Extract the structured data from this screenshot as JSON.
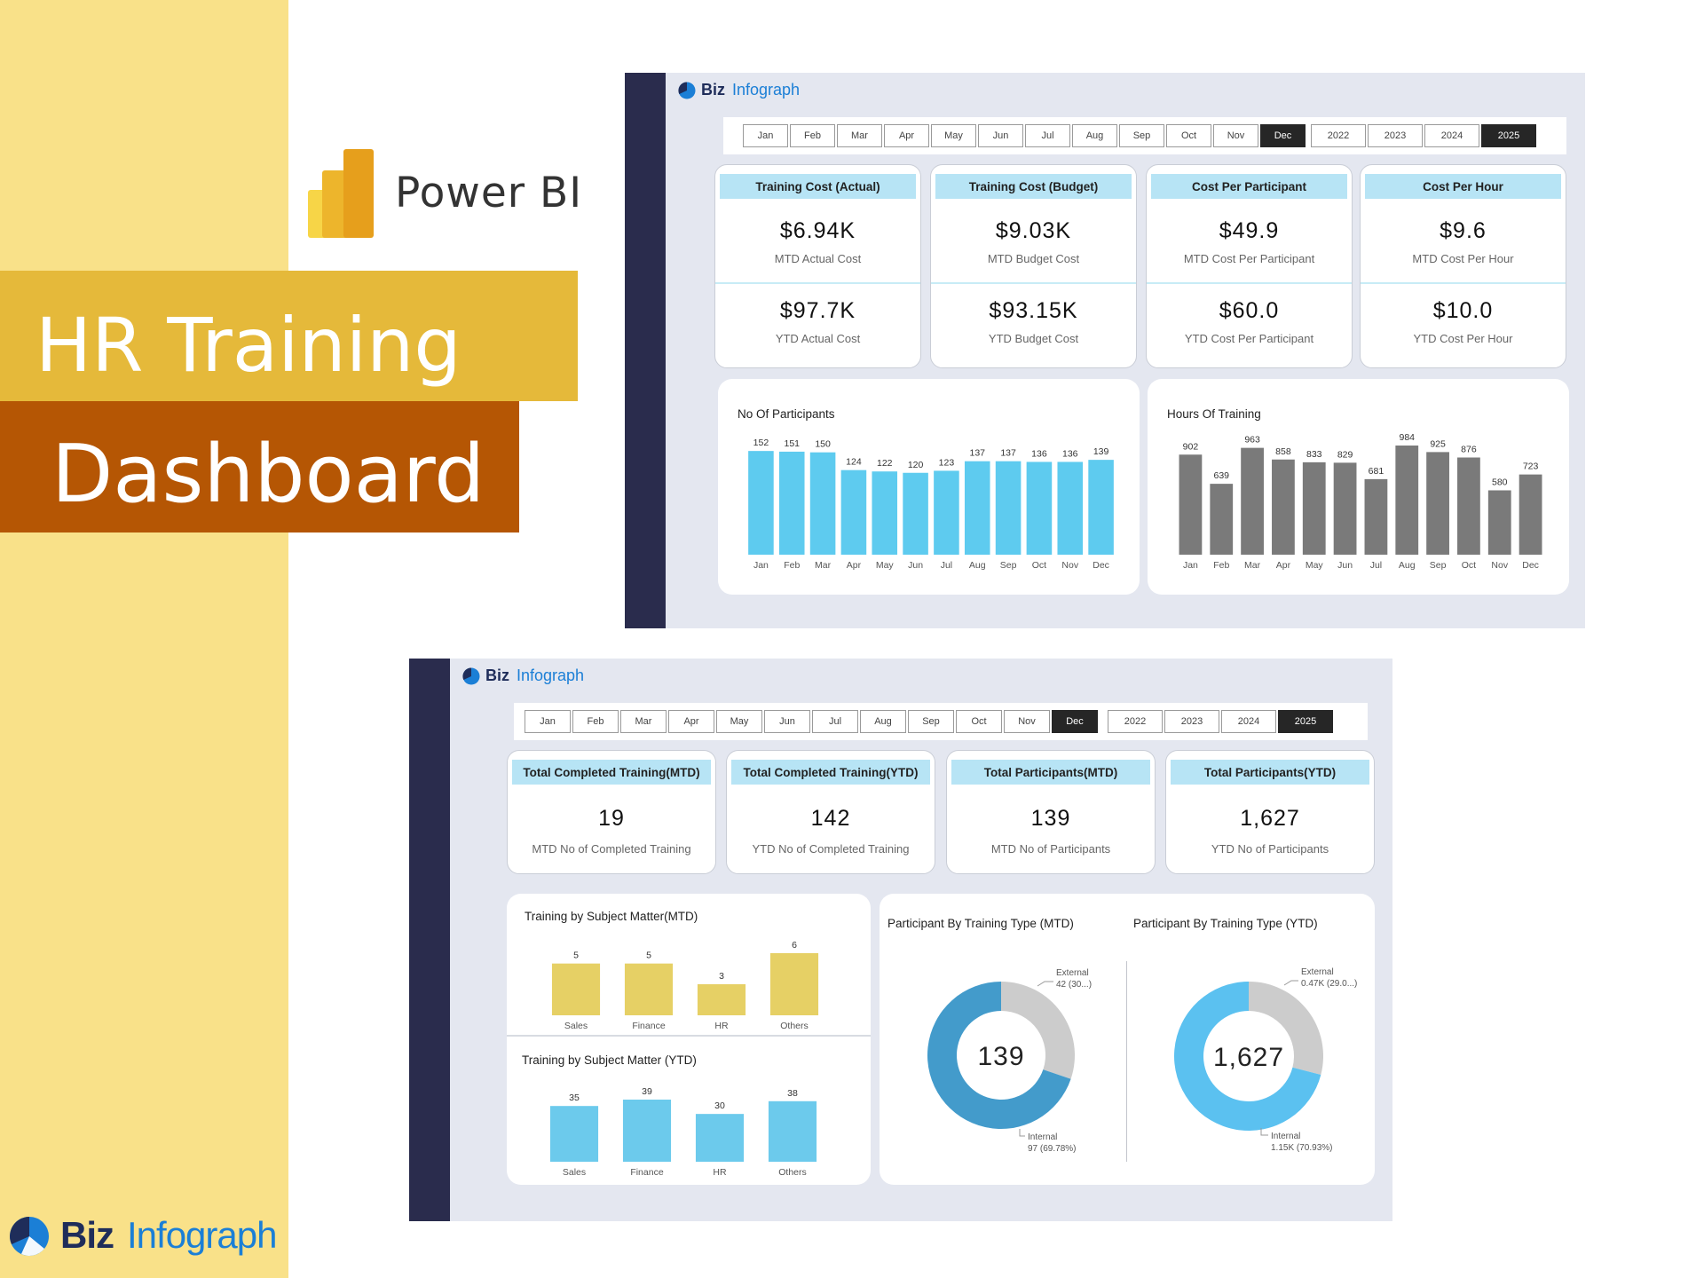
{
  "promo": {
    "powerbi_label": "Power BI",
    "title_line1": "HR Training",
    "title_line2": "Dashboard",
    "brand_biz": "Biz",
    "brand_infograph": "Infograph",
    "colors": {
      "strip": "#f9e189",
      "box1": "#e5b93a",
      "box2": "#b55604"
    }
  },
  "dashboard1": {
    "brand_biz": "Biz",
    "brand_infograph": "Infograph",
    "months": [
      "Jan",
      "Feb",
      "Mar",
      "Apr",
      "May",
      "Jun",
      "Jul",
      "Aug",
      "Sep",
      "Oct",
      "Nov",
      "Dec"
    ],
    "selected_month": "Dec",
    "years": [
      "2022",
      "2023",
      "2024",
      "2025"
    ],
    "selected_year": "2025",
    "kpis": [
      {
        "header": "Training Cost (Actual)",
        "mtd_value": "$6.94K",
        "mtd_label": "MTD Actual Cost",
        "ytd_value": "$97.7K",
        "ytd_label": "YTD Actual Cost"
      },
      {
        "header": "Training Cost (Budget)",
        "mtd_value": "$9.03K",
        "mtd_label": "MTD Budget Cost",
        "ytd_value": "$93.15K",
        "ytd_label": "YTD Budget Cost"
      },
      {
        "header": "Cost Per Participant",
        "mtd_value": "$49.9",
        "mtd_label": "MTD Cost Per Participant",
        "ytd_value": "$60.0",
        "ytd_label": "YTD Cost Per Participant"
      },
      {
        "header": "Cost Per Hour",
        "mtd_value": "$9.6",
        "mtd_label": "MTD Cost Per Hour",
        "ytd_value": "$10.0",
        "ytd_label": "YTD Cost Per Hour"
      }
    ]
  },
  "dashboard2": {
    "brand_biz": "Biz",
    "brand_infograph": "Infograph",
    "months": [
      "Jan",
      "Feb",
      "Mar",
      "Apr",
      "May",
      "Jun",
      "Jul",
      "Aug",
      "Sep",
      "Oct",
      "Nov",
      "Dec"
    ],
    "selected_month": "Dec",
    "years": [
      "2022",
      "2023",
      "2024",
      "2025"
    ],
    "selected_year": "2025",
    "kpis": [
      {
        "header": "Total Completed Training(MTD)",
        "value": "19",
        "label": "MTD No of Completed Training"
      },
      {
        "header": "Total Completed Training(YTD)",
        "value": "142",
        "label": "YTD No of Completed Training"
      },
      {
        "header": "Total Participants(MTD)",
        "value": "139",
        "label": "MTD No of Participants"
      },
      {
        "header": "Total Participants(YTD)",
        "value": "1,627",
        "label": "YTD No of Participants"
      }
    ]
  },
  "chart_data": [
    {
      "type": "bar",
      "title": "No Of Participants",
      "categories": [
        "Jan",
        "Feb",
        "Mar",
        "Apr",
        "May",
        "Jun",
        "Jul",
        "Aug",
        "Sep",
        "Oct",
        "Nov",
        "Dec"
      ],
      "values": [
        152,
        151,
        150,
        124,
        122,
        120,
        123,
        137,
        137,
        136,
        136,
        139
      ],
      "color": "#5ecbef",
      "ylim": [
        0,
        160
      ]
    },
    {
      "type": "bar",
      "title": "Hours Of Training",
      "categories": [
        "Jan",
        "Feb",
        "Mar",
        "Apr",
        "May",
        "Jun",
        "Jul",
        "Aug",
        "Sep",
        "Oct",
        "Nov",
        "Dec"
      ],
      "values": [
        902,
        639,
        963,
        858,
        833,
        829,
        681,
        984,
        925,
        876,
        580,
        723
      ],
      "color": "#7a7a7a",
      "ylim": [
        0,
        1000
      ]
    },
    {
      "type": "bar",
      "title": "Training by Subject Matter(MTD)",
      "categories": [
        "Sales",
        "Finance",
        "HR",
        "Others"
      ],
      "values": [
        5,
        5,
        3,
        6
      ],
      "color": "#e6d065",
      "ylim": [
        0,
        6
      ]
    },
    {
      "type": "bar",
      "title": "Training by Subject Matter (YTD)",
      "categories": [
        "Sales",
        "Finance",
        "HR",
        "Others"
      ],
      "values": [
        35,
        39,
        30,
        38
      ],
      "color": "#6ccaec",
      "ylim": [
        0,
        39
      ]
    },
    {
      "type": "pie",
      "title": "Participant By Training Type (MTD)",
      "center_label": "139",
      "slices": [
        {
          "name": "External",
          "value": 42,
          "label": "42 (30...)"
        },
        {
          "name": "Internal",
          "value": 97,
          "label": "97 (69.78%)"
        }
      ],
      "colors": [
        "#cccccc",
        "#439bcb"
      ]
    },
    {
      "type": "pie",
      "title": "Participant By Training Type (YTD)",
      "center_label": "1,627",
      "slices": [
        {
          "name": "External",
          "value": 0.47,
          "label": "0.47K (29.0...)"
        },
        {
          "name": "Internal",
          "value": 1.15,
          "label": "1.15K (70.93%)"
        }
      ],
      "colors": [
        "#cccccc",
        "#5bc1f0"
      ]
    }
  ]
}
